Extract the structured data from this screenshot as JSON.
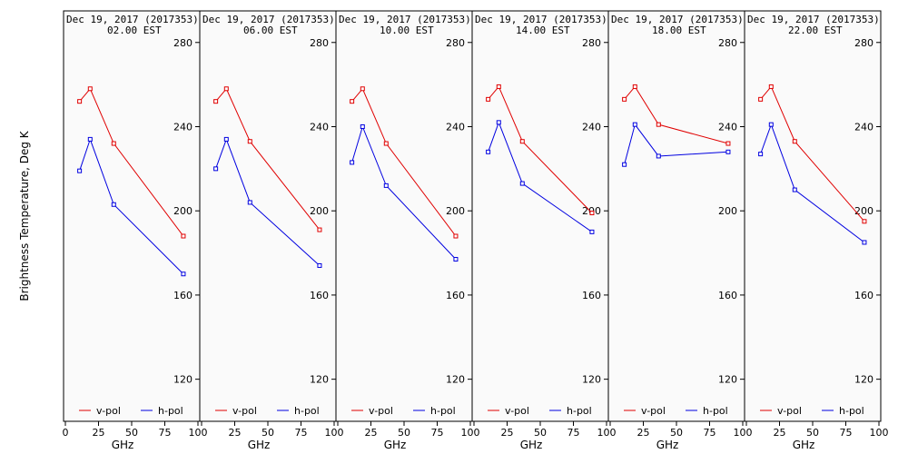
{
  "chart_data": {
    "type": "line",
    "ylabel": "Brightness Temperature, Deg K",
    "xlabel": "GHz",
    "ylim": [
      100,
      295
    ],
    "xlim": [
      0,
      100
    ],
    "yticks": [
      "120",
      "160",
      "200",
      "240",
      "280"
    ],
    "xticks": [
      "0",
      "25",
      "50",
      "75",
      "100"
    ],
    "legend": [
      "v-pol",
      "h-pol"
    ],
    "colors": {
      "v-pol": "#e00000",
      "h-pol": "#0000e0"
    },
    "panels": [
      {
        "title_line1": "Dec 19, 2017 (2017353)",
        "title_line2": "02.00 EST",
        "x": [
          10.7,
          18.7,
          36.5,
          89.0
        ],
        "series": [
          {
            "name": "v-pol",
            "values": [
              252,
              258,
              232,
              188
            ]
          },
          {
            "name": "h-pol",
            "values": [
              219,
              234,
              203,
              170
            ]
          }
        ]
      },
      {
        "title_line1": "Dec 19, 2017 (2017353)",
        "title_line2": "06.00 EST",
        "x": [
          10.7,
          18.7,
          36.5,
          89.0
        ],
        "series": [
          {
            "name": "v-pol",
            "values": [
              252,
              258,
              233,
              191
            ]
          },
          {
            "name": "h-pol",
            "values": [
              220,
              234,
              204,
              174
            ]
          }
        ]
      },
      {
        "title_line1": "Dec 19, 2017 (2017353)",
        "title_line2": "10.00 EST",
        "x": [
          10.7,
          18.7,
          36.5,
          89.0
        ],
        "series": [
          {
            "name": "v-pol",
            "values": [
              252,
              258,
              232,
              188
            ]
          },
          {
            "name": "h-pol",
            "values": [
              223,
              240,
              212,
              177
            ]
          }
        ]
      },
      {
        "title_line1": "Dec 19, 2017 (2017353)",
        "title_line2": "14.00 EST",
        "x": [
          10.7,
          18.7,
          36.5,
          89.0
        ],
        "series": [
          {
            "name": "v-pol",
            "values": [
              253,
              259,
              233,
              199
            ]
          },
          {
            "name": "h-pol",
            "values": [
              228,
              242,
              213,
              190
            ]
          }
        ]
      },
      {
        "title_line1": "Dec 19, 2017 (2017353)",
        "title_line2": "18.00 EST",
        "x": [
          10.7,
          18.7,
          36.5,
          89.0
        ],
        "series": [
          {
            "name": "v-pol",
            "values": [
              253,
              259,
              241,
              232
            ]
          },
          {
            "name": "h-pol",
            "values": [
              222,
              241,
              226,
              228
            ]
          }
        ]
      },
      {
        "title_line1": "Dec 19, 2017 (2017353)",
        "title_line2": "22.00 EST",
        "x": [
          10.7,
          18.7,
          36.5,
          89.0
        ],
        "series": [
          {
            "name": "v-pol",
            "values": [
              253,
              259,
              233,
              195
            ]
          },
          {
            "name": "h-pol",
            "values": [
              227,
              241,
              210,
              185
            ]
          }
        ]
      }
    ]
  }
}
